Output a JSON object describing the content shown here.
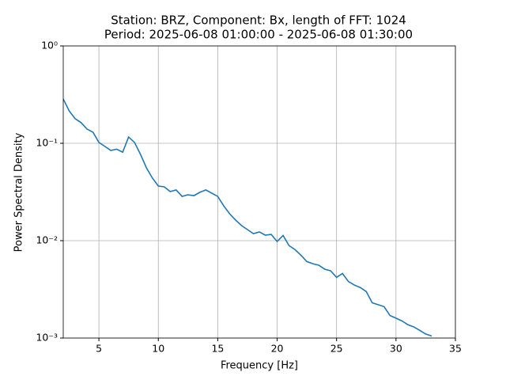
{
  "chart_data": {
    "type": "line",
    "title": "Station: BRZ, Component: Bx, length of FFT: 1024",
    "subtitle": "Period: 2025-06-08 01:00:00 - 2025-06-08 01:30:00",
    "x_label": "Frequency [Hz]",
    "y_label": "Power Spectral Density",
    "x": [
      2,
      2.5,
      3,
      3.5,
      4,
      4.5,
      5,
      5.5,
      6,
      6.5,
      7,
      7.5,
      8,
      8.5,
      9,
      9.5,
      10,
      10.5,
      11,
      11.5,
      12,
      12.5,
      13,
      13.5,
      14,
      14.5,
      15,
      15.5,
      16,
      16.5,
      17,
      17.5,
      18,
      18.5,
      19,
      19.5,
      20,
      20.5,
      21,
      21.5,
      22,
      22.5,
      23,
      23.5,
      24,
      24.5,
      25,
      25.5,
      26,
      26.5,
      27,
      27.5,
      28,
      28.5,
      29,
      29.5,
      30,
      30.5,
      31,
      31.5,
      32,
      32.5,
      33
    ],
    "values": [
      0.285,
      0.215,
      0.179,
      0.163,
      0.14,
      0.13,
      0.102,
      0.093,
      0.0845,
      0.087,
      0.081,
      0.116,
      0.102,
      0.077,
      0.056,
      0.044,
      0.0364,
      0.0357,
      0.0319,
      0.0332,
      0.0285,
      0.0296,
      0.029,
      0.0314,
      0.0332,
      0.0307,
      0.0285,
      0.0228,
      0.0189,
      0.0163,
      0.0143,
      0.013,
      0.0118,
      0.0123,
      0.0114,
      0.0116,
      0.0098,
      0.0113,
      0.0089,
      0.0081,
      0.0071,
      0.0061,
      0.0058,
      0.0056,
      0.0051,
      0.0049,
      0.0042,
      0.0046,
      0.0038,
      0.0035,
      0.0033,
      0.003,
      0.0023,
      0.0022,
      0.0021,
      0.0017,
      0.0016,
      0.0015,
      0.00137,
      0.0013,
      0.0012,
      0.0011,
      0.00105
    ],
    "color": "#1f77b4",
    "xlim": [
      2,
      35
    ],
    "xticks": [
      5,
      10,
      15,
      20,
      25,
      30,
      35
    ],
    "ylim": [
      0.001,
      1
    ],
    "y_log": true,
    "yticks": [
      {
        "value": 1,
        "label": "10⁰"
      },
      {
        "value": 0.1,
        "label": "10⁻¹"
      },
      {
        "value": 0.01,
        "label": "10⁻²"
      },
      {
        "value": 0.001,
        "label": "10⁻³"
      }
    ],
    "grid": true
  }
}
